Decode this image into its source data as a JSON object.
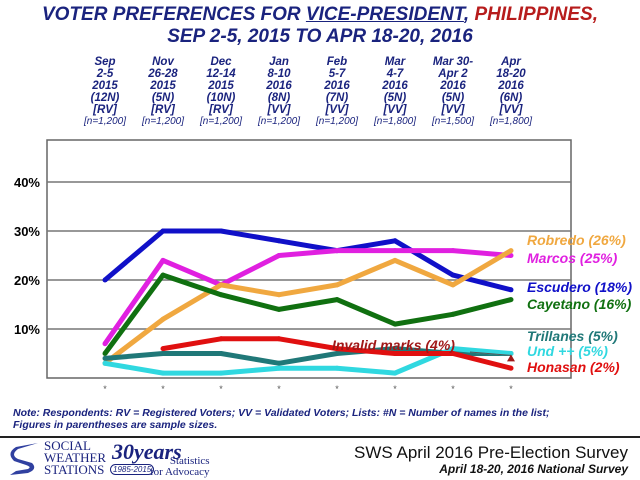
{
  "title": {
    "part1": "VOTER PREFERENCES FOR ",
    "underlined": "VICE-PRESIDENT",
    "comma": ", ",
    "country": "PHILIPPINES",
    "end": ",",
    "line2": "SEP 2-5, 2015 TO APR 18-20, 2016"
  },
  "chart_data": {
    "type": "line",
    "ylim": [
      0,
      40
    ],
    "yticks": [
      "10%",
      "20%",
      "30%",
      "40%"
    ],
    "grid": true,
    "legend": "right, end-of-line labels",
    "categories": [
      {
        "l1": "Sep",
        "l2": "2-5",
        "l3": "2015",
        "l4": "(12N)",
        "l5": "[RV]",
        "n": "[n=1,200]"
      },
      {
        "l1": "Nov",
        "l2": "26-28",
        "l3": "2015",
        "l4": "(5N)",
        "l5": "[RV]",
        "n": "[n=1,200]"
      },
      {
        "l1": "Dec",
        "l2": "12-14",
        "l3": "2015",
        "l4": "(10N)",
        "l5": "[RV]",
        "n": "[n=1,200]"
      },
      {
        "l1": "Jan",
        "l2": "8-10",
        "l3": "2016",
        "l4": "(8N)",
        "l5": "[VV]",
        "n": "[n=1,200]"
      },
      {
        "l1": "Feb",
        "l2": "5-7",
        "l3": "2016",
        "l4": "(7N)",
        "l5": "[VV]",
        "n": "[n=1,200]"
      },
      {
        "l1": "Mar",
        "l2": "4-7",
        "l3": "2016",
        "l4": "(5N)",
        "l5": "[VV]",
        "n": "[n=1,800]"
      },
      {
        "l1": "Mar 30-",
        "l2": "Apr 2",
        "l3": "2016",
        "l4": "(5N)",
        "l5": "[VV]",
        "n": "[n=1,500]"
      },
      {
        "l1": "Apr",
        "l2": "18-20",
        "l3": "2016",
        "l4": "(6N)",
        "l5": "[VV]",
        "n": "[n=1,800]"
      }
    ],
    "series": [
      {
        "name": "Escudero",
        "label": "Escudero (18%)",
        "color": "#1010c8",
        "values": [
          20,
          30,
          30,
          28,
          26,
          28,
          21,
          18
        ]
      },
      {
        "name": "Marcos",
        "label": "Marcos (25%)",
        "color": "#e020e0",
        "values": [
          7,
          24,
          19,
          25,
          26,
          26,
          26,
          25
        ]
      },
      {
        "name": "Robredo",
        "label": "Robredo (26%)",
        "color": "#f0a840",
        "values": [
          3,
          12,
          19,
          17,
          19,
          24,
          19,
          26
        ]
      },
      {
        "name": "Cayetano",
        "label": "Cayetano (16%)",
        "color": "#107010",
        "values": [
          5,
          21,
          17,
          14,
          16,
          11,
          13,
          16
        ]
      },
      {
        "name": "Trillanes",
        "label": "Trillanes (5%)",
        "color": "#207878",
        "values": [
          4,
          5,
          5,
          3,
          5,
          6,
          5,
          5
        ]
      },
      {
        "name": "Und ++",
        "label": "Und ++ (5%)",
        "color": "#30d8e0",
        "values": [
          3,
          1,
          1,
          2,
          2,
          1,
          6,
          5
        ]
      },
      {
        "name": "Honasan",
        "label": "Honasan (2%)",
        "color": "#e01010",
        "values": [
          null,
          6,
          8,
          8,
          6,
          5,
          5,
          2
        ]
      }
    ],
    "annotation": {
      "label": "Invalid marks (4%)",
      "value": 4,
      "color": "#a01818"
    }
  },
  "note": {
    "line1": "Note: Respondents: RV = Registered Voters; VV = Validated Voters; Lists: #N = Number of names in the list;",
    "line2": "Figures in parentheses are sample sizes."
  },
  "footer": {
    "logo_text": [
      "SOCIAL",
      "WEATHER",
      "STATIONS"
    ],
    "anniv": "30years",
    "anniv_years": "1985-2015",
    "anniv_tag": [
      "Statistics",
      "for Advocacy"
    ],
    "survey_title": "SWS April 2016 Pre-Election Survey",
    "survey_sub": "April 18-20, 2016 National Survey"
  }
}
